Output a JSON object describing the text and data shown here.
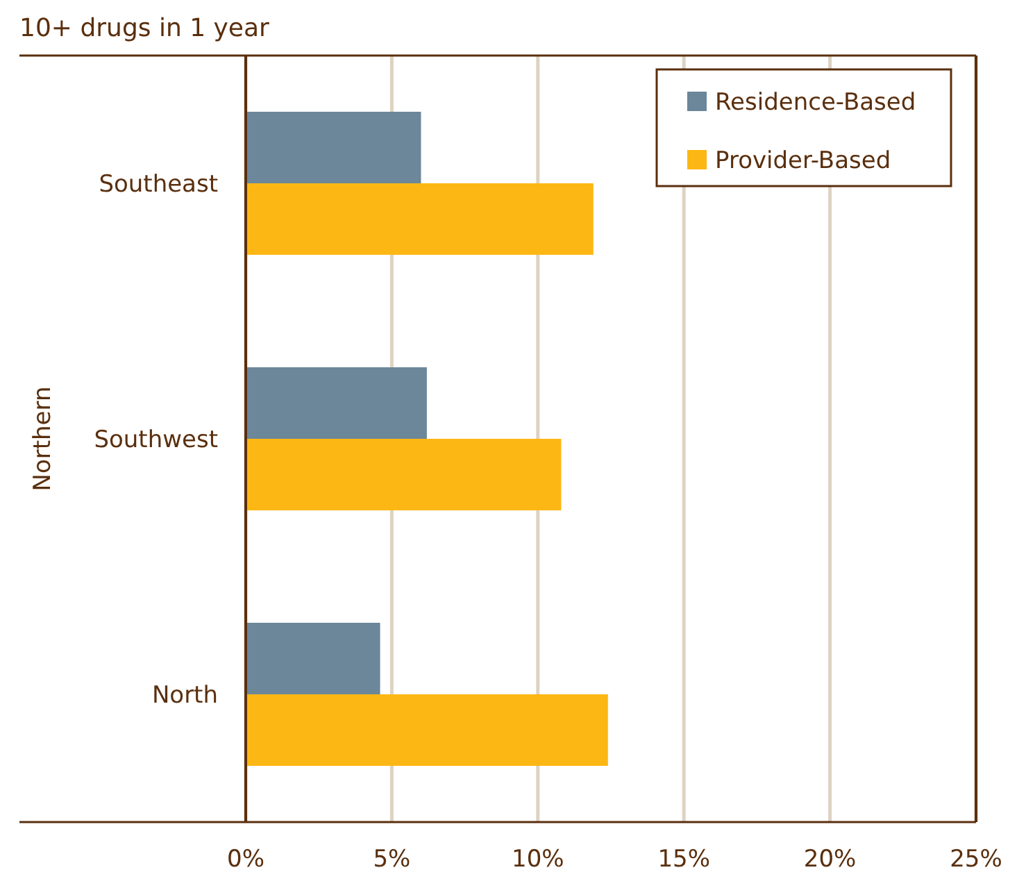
{
  "chart_data": {
    "type": "bar",
    "orientation": "horizontal",
    "title": "10+ drugs in 1 year",
    "ylabel": "Northern",
    "categories": [
      "Southeast",
      "Southwest",
      "North"
    ],
    "series": [
      {
        "name": "Residence-Based",
        "color": "#6b8799",
        "values": [
          6.0,
          6.2,
          4.6
        ]
      },
      {
        "name": "Provider-Based",
        "color": "#fdb714",
        "values": [
          11.9,
          10.8,
          12.4
        ]
      }
    ],
    "xlim": [
      0,
      25
    ],
    "xticks": [
      {
        "value": 0,
        "label": "0%"
      },
      {
        "value": 5,
        "label": "5%"
      },
      {
        "value": 10,
        "label": "10%"
      },
      {
        "value": 15,
        "label": "15%"
      },
      {
        "value": 20,
        "label": "20%"
      },
      {
        "value": 25,
        "label": "25%"
      }
    ],
    "grid": "x",
    "legend": "top right"
  }
}
